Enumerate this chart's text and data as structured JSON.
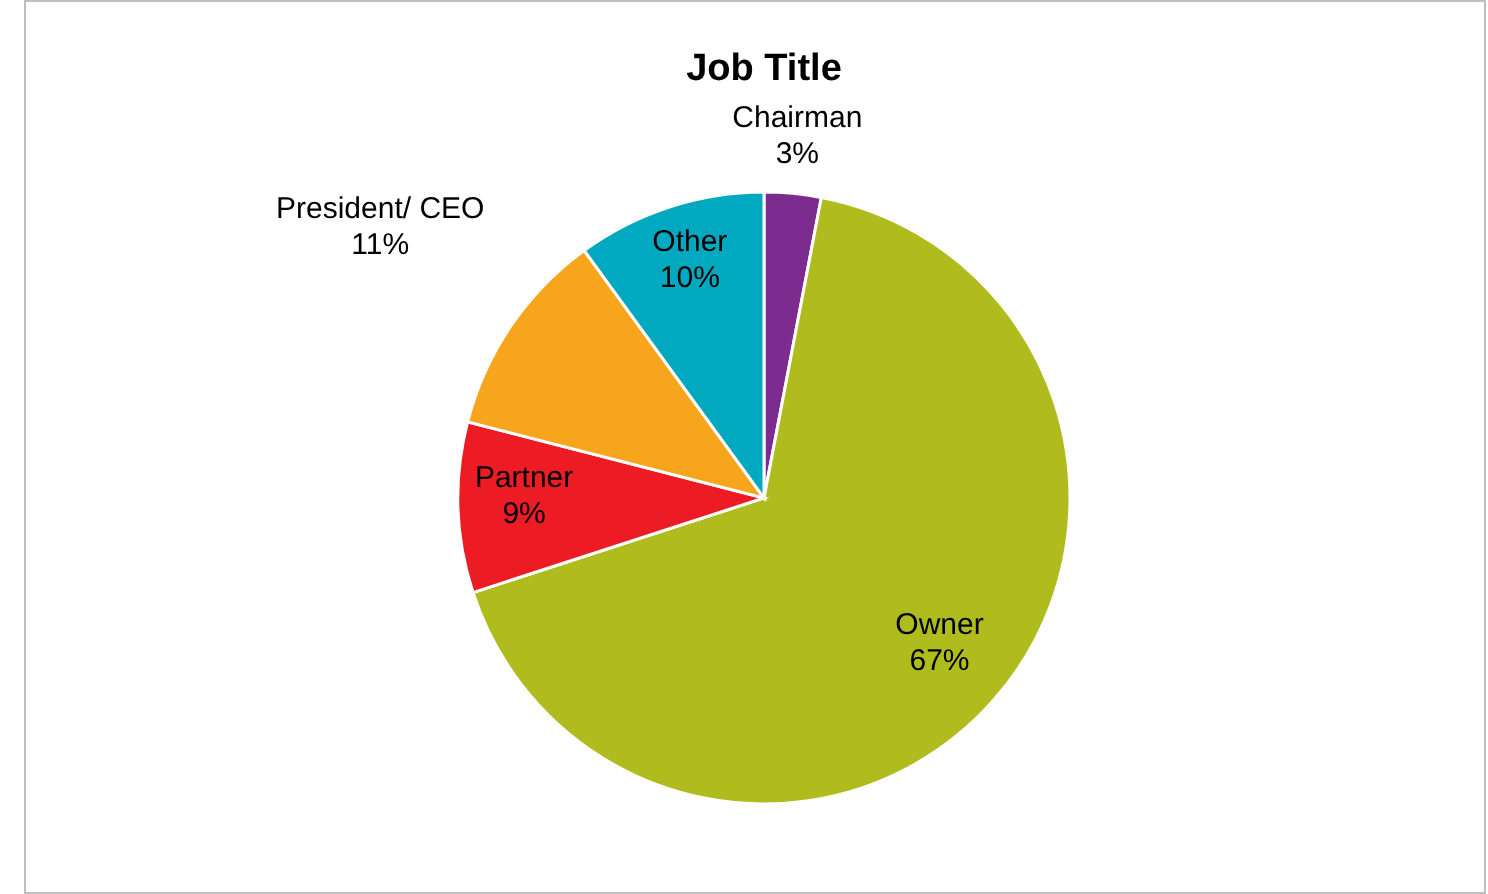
{
  "chart_data": {
    "type": "pie",
    "title": "Job Title",
    "categories": [
      "Chairman",
      "Owner",
      "Partner",
      "President/ CEO",
      "Other"
    ],
    "values": [
      3,
      67,
      9,
      11,
      10
    ],
    "value_labels": [
      "3%",
      "67%",
      "9%",
      "11%",
      "10%"
    ],
    "colors": [
      "#7b2c8e",
      "#b0bb1e",
      "#ed1c24",
      "#f7a51c",
      "#00a9c0"
    ],
    "legend": false
  }
}
